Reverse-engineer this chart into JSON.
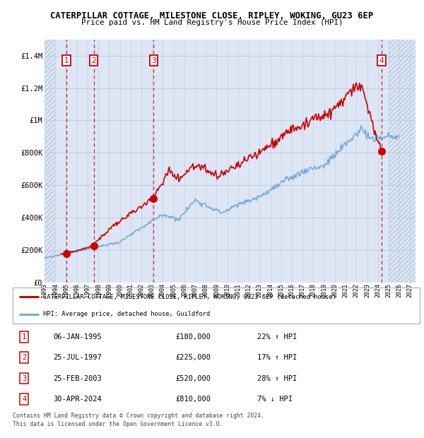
{
  "title_line1": "CATERPILLAR COTTAGE, MILESTONE CLOSE, RIPLEY, WOKING, GU23 6EP",
  "title_line2": "Price paid vs. HM Land Registry's House Price Index (HPI)",
  "transactions": [
    {
      "num": 1,
      "date_num": 1995.02,
      "price": 180000,
      "label": "06-JAN-1995",
      "pct": "22%",
      "dir": "↑"
    },
    {
      "num": 2,
      "date_num": 1997.57,
      "price": 225000,
      "label": "25-JUL-1997",
      "pct": "17%",
      "dir": "↑"
    },
    {
      "num": 3,
      "date_num": 2003.15,
      "price": 520000,
      "label": "25-FEB-2003",
      "pct": "28%",
      "dir": "↑"
    },
    {
      "num": 4,
      "date_num": 2024.33,
      "price": 810000,
      "label": "30-APR-2024",
      "pct": "7%",
      "dir": "↓"
    }
  ],
  "hpi_color": "#7aaad4",
  "price_color": "#cc0000",
  "dot_color": "#cc0000",
  "transaction_box_color": "#cc0000",
  "dashed_line_color": "#cc0000",
  "bg_fill_color": "#dce6f5",
  "grid_color": "#c0c8d8",
  "ylim": [
    0,
    1500000
  ],
  "xlim_start": 1993.0,
  "xlim_end": 2027.5,
  "yticks": [
    0,
    200000,
    400000,
    600000,
    800000,
    1000000,
    1200000,
    1400000
  ],
  "ytick_labels": [
    "£0",
    "£200K",
    "£400K",
    "£600K",
    "£800K",
    "£1M",
    "£1.2M",
    "£1.4M"
  ],
  "xtick_years": [
    1993,
    1994,
    1995,
    1996,
    1997,
    1998,
    1999,
    2000,
    2001,
    2002,
    2003,
    2004,
    2005,
    2006,
    2007,
    2008,
    2009,
    2010,
    2011,
    2012,
    2013,
    2014,
    2015,
    2016,
    2017,
    2018,
    2019,
    2020,
    2021,
    2022,
    2023,
    2024,
    2025,
    2026,
    2027
  ],
  "legend_label_red": "CATERPILLAR COTTAGE, MILESTONE CLOSE, RIPLEY, WOKING, GU23 6EP (detached house)",
  "legend_label_blue": "HPI: Average price, detached house, Guildford",
  "footer_line1": "Contains HM Land Registry data © Crown copyright and database right 2024.",
  "footer_line2": "This data is licensed under the Open Government Licence v3.0.",
  "table_rows": [
    {
      "num": "1",
      "date": "06-JAN-1995",
      "price": "£180,000",
      "hpi": "22% ↑ HPI"
    },
    {
      "num": "2",
      "date": "25-JUL-1997",
      "price": "£225,000",
      "hpi": "17% ↑ HPI"
    },
    {
      "num": "3",
      "date": "25-FEB-2003",
      "price": "£520,000",
      "hpi": "28% ↑ HPI"
    },
    {
      "num": "4",
      "date": "30-APR-2024",
      "price": "£810,000",
      "hpi": "7% ↓ HPI"
    }
  ]
}
